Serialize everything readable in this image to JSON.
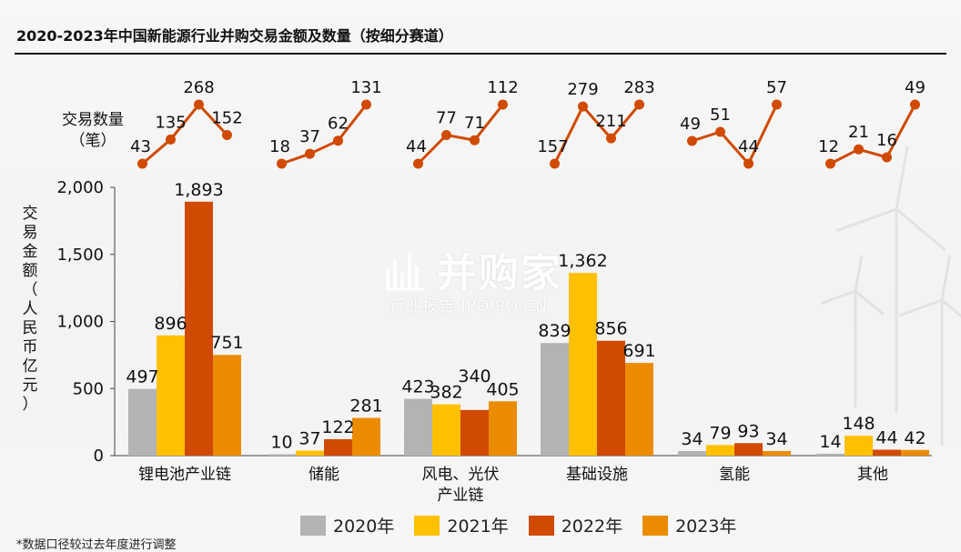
{
  "title": "2020-2023年中国新能源行业并购交易金额及数量（按细分赛道）",
  "footnote": "*数据口径较过去年度进行调整",
  "watermark": {
    "main": "并购家",
    "sub": "行业报告 IPOIPO.CN"
  },
  "colors": {
    "2020": "#b3b3b3",
    "2021": "#ffc000",
    "2022": "#d04a02",
    "2023": "#eb8c00",
    "line": "#d04a02"
  },
  "chart_data": {
    "type": "bar",
    "title": "2020-2023年中国新能源行业并购交易金额及数量（按细分赛道）",
    "xlabel": "",
    "ylabel": "交易金额（人民币亿元）",
    "ylim": [
      0,
      2000
    ],
    "yticks": [
      "0",
      "500",
      "1,000",
      "1,500",
      "2,000"
    ],
    "ytick_values": [
      0,
      500,
      1000,
      1500,
      2000
    ],
    "categories": [
      "锂电池产业链",
      "储能",
      "风电、光伏产业链",
      "基础设施",
      "氢能",
      "其他"
    ],
    "category_lines": [
      [
        "锂电池产业链"
      ],
      [
        "储能"
      ],
      [
        "风电、光伏",
        "产业链"
      ],
      [
        "基础设施"
      ],
      [
        "氢能"
      ],
      [
        "其他"
      ]
    ],
    "series": [
      {
        "name": "2020年",
        "values": [
          497,
          10,
          423,
          839,
          34,
          14
        ],
        "labels": [
          "497",
          "10",
          "423",
          "839",
          "34",
          "14"
        ]
      },
      {
        "name": "2021年",
        "values": [
          896,
          37,
          382,
          1362,
          79,
          148
        ],
        "labels": [
          "896",
          "37",
          "382",
          "1,362",
          "79",
          "148"
        ]
      },
      {
        "name": "2022年",
        "values": [
          1893,
          122,
          340,
          856,
          93,
          44
        ],
        "labels": [
          "1,893",
          "122",
          "340",
          "856",
          "93",
          "44"
        ]
      },
      {
        "name": "2023年",
        "values": [
          751,
          281,
          405,
          691,
          34,
          42
        ],
        "labels": [
          "751",
          "281",
          "405",
          "691",
          "34",
          "42"
        ]
      }
    ],
    "legend_position": "bottom",
    "grid": false,
    "deal_count": {
      "label_line1": "交易数量",
      "label_line2": "（笔）",
      "values": [
        [
          43,
          135,
          268,
          152
        ],
        [
          18,
          37,
          62,
          131
        ],
        [
          44,
          77,
          71,
          112
        ],
        [
          157,
          279,
          211,
          283
        ],
        [
          49,
          51,
          44,
          57
        ],
        [
          12,
          21,
          16,
          49
        ]
      ]
    }
  }
}
